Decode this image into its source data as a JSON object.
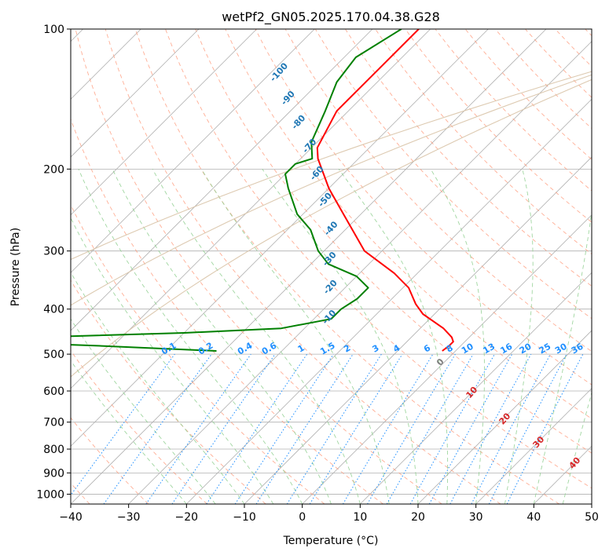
{
  "chart_data": {
    "type": "line",
    "subtype": "skew-t log-p diagram",
    "title": "wetPf2_GN05.2025.170.04.38.G28",
    "xlabel": "Temperature (°C)",
    "ylabel": "Pressure (hPa)",
    "xlim": [
      -40,
      50
    ],
    "ylim": [
      1050,
      100
    ],
    "y_scale": "log",
    "x_ticks": [
      -40,
      -30,
      -20,
      -10,
      0,
      10,
      20,
      30,
      40,
      50
    ],
    "x_tick_labels": [
      "−40",
      "−30",
      "−20",
      "−10",
      "0",
      "10",
      "20",
      "30",
      "40",
      "50"
    ],
    "y_ticks": [
      100,
      200,
      300,
      400,
      500,
      600,
      700,
      800,
      900,
      1000
    ],
    "y_tick_labels": [
      "100",
      "200",
      "300",
      "400",
      "500",
      "600",
      "700",
      "800",
      "900",
      "1000"
    ],
    "grid": true,
    "series": [
      {
        "color": "#ff0000",
        "points": [
          {
            "p": 100,
            "t": -62
          },
          {
            "p": 120,
            "t": -62
          },
          {
            "p": 150,
            "t": -62
          },
          {
            "p": 180,
            "t": -59
          },
          {
            "p": 190,
            "t": -57
          },
          {
            "p": 220,
            "t": -50
          },
          {
            "p": 250,
            "t": -43
          },
          {
            "p": 300,
            "t": -33
          },
          {
            "p": 335,
            "t": -24
          },
          {
            "p": 360,
            "t": -19
          },
          {
            "p": 390,
            "t": -15
          },
          {
            "p": 410,
            "t": -12
          },
          {
            "p": 440,
            "t": -6
          },
          {
            "p": 460,
            "t": -3
          },
          {
            "p": 470,
            "t": -2
          },
          {
            "p": 480,
            "t": -2
          },
          {
            "p": 492,
            "t": -2.3
          }
        ]
      },
      {
        "color": "#008000",
        "points": [
          {
            "p": 100,
            "t": -65
          },
          {
            "p": 115,
            "t": -68
          },
          {
            "p": 130,
            "t": -67
          },
          {
            "p": 150,
            "t": -64
          },
          {
            "p": 175,
            "t": -61
          },
          {
            "p": 190,
            "t": -58
          },
          {
            "p": 195,
            "t": -60
          },
          {
            "p": 205,
            "t": -60
          },
          {
            "p": 220,
            "t": -57
          },
          {
            "p": 250,
            "t": -51
          },
          {
            "p": 270,
            "t": -46
          },
          {
            "p": 300,
            "t": -41
          },
          {
            "p": 320,
            "t": -37
          },
          {
            "p": 340,
            "t": -30
          },
          {
            "p": 360,
            "t": -26
          },
          {
            "p": 380,
            "t": -26
          },
          {
            "p": 400,
            "t": -27
          },
          {
            "p": 420,
            "t": -27
          },
          {
            "p": 440,
            "t": -34
          },
          {
            "p": 450,
            "t": -50
          },
          {
            "p": 460,
            "t": -75
          },
          {
            "p": 470,
            "t": -82
          },
          {
            "p": 480,
            "t": -62
          },
          {
            "p": 492,
            "t": -41.3
          }
        ]
      }
    ],
    "dry_adiabat_labels": [
      "-100",
      "-90",
      "-80",
      "-70",
      "-60",
      "-50",
      "-40",
      "-30",
      "-20",
      "-10"
    ],
    "mixing_ratio_labels": [
      "0.1",
      "0.2",
      "0.4",
      "0.6",
      "1",
      "1.5",
      "2",
      "3",
      "4",
      "6",
      "8",
      "10",
      "13",
      "16",
      "20",
      "25",
      "30",
      "36"
    ],
    "moist_adiabat_labels": [
      "0",
      "10",
      "20",
      "30",
      "40"
    ],
    "colors": {
      "temperature": "#ff0000",
      "dewpoint": "#008000",
      "isotherm": "#b0b0b0",
      "isobar": "#b0b0b0",
      "dry_adiabat": "#ff9a7a",
      "moist_adiabat": "#8fcf8f",
      "mixing_ratio": "#1f8fff",
      "dry_label": "#1f77b4",
      "moist_label": "#d62728",
      "moist_label_zero": "#7f7f7f",
      "guide_curves": "#d9c4a8"
    }
  }
}
